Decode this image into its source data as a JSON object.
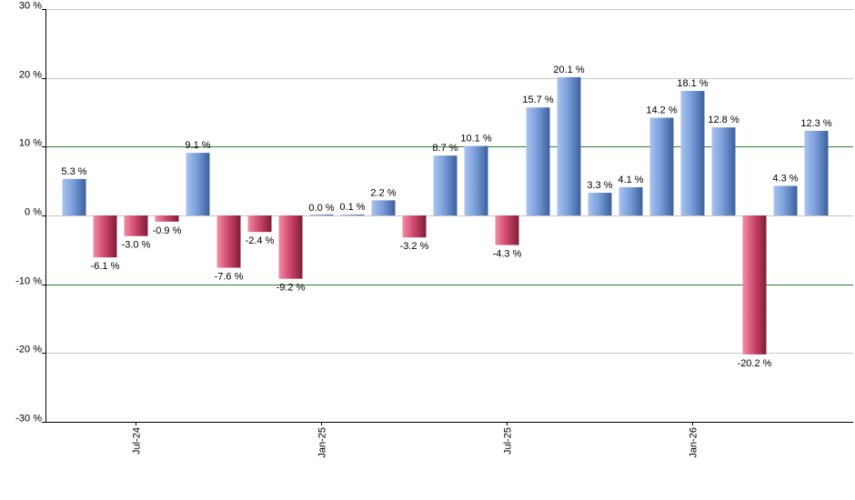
{
  "chart_data": {
    "type": "bar",
    "title": "",
    "xlabel": "",
    "ylabel": "",
    "ylim": [
      -30,
      30
    ],
    "y_ticks": [
      30,
      20,
      10,
      0,
      -10,
      -20,
      -30
    ],
    "y_tick_labels": [
      "30 %",
      "20 %",
      "10 %",
      "0 %",
      "-10 %",
      "-20 %",
      "-30 %"
    ],
    "reference_lines": [
      10,
      -10
    ],
    "grid": true,
    "x_tick_labels": [
      {
        "label": "Jul-24",
        "bar_index": 2
      },
      {
        "label": "Jan-25",
        "bar_index": 8
      },
      {
        "label": "Jul-25",
        "bar_index": 14
      },
      {
        "label": "Jan-26",
        "bar_index": 20
      }
    ],
    "values": [
      5.3,
      -6.1,
      -3.0,
      -0.9,
      9.1,
      -7.6,
      -2.4,
      -9.2,
      0.0,
      0.1,
      2.2,
      -3.2,
      8.7,
      10.1,
      -4.3,
      15.7,
      20.1,
      3.3,
      4.1,
      14.2,
      18.1,
      12.8,
      -20.2,
      4.3,
      12.3
    ],
    "value_labels": [
      "5.3 %",
      "-6.1 %",
      "-3.0 %",
      "-0.9 %",
      "9.1 %",
      "-7.6 %",
      "-2.4 %",
      "-9.2 %",
      "0.0 %",
      "0.1 %",
      "2.2 %",
      "-3.2 %",
      "8.7 %",
      "10.1 %",
      "-4.3 %",
      "15.7 %",
      "20.1 %",
      "3.3 %",
      "4.1 %",
      "14.2 %",
      "18.1 %",
      "12.8 %",
      "-20.2 %",
      "4.3 %",
      "12.3 %"
    ],
    "colors": {
      "positive_light": "#a9c4ee",
      "positive_mid": "#7a9fdc",
      "positive_dark": "#3c5f9a",
      "negative_light": "#f08ea8",
      "negative_mid": "#d24a6e",
      "negative_dark": "#7e1c36",
      "grid": "#c8c8c8",
      "reference": "#2e7d2e",
      "axis": "#000000"
    }
  }
}
